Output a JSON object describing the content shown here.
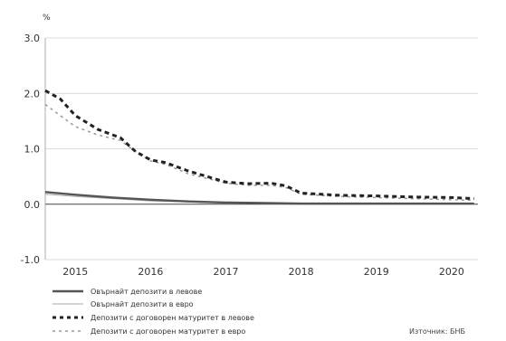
{
  "chart_data": {
    "type": "line",
    "unit_label": "%",
    "source": "Източник: БНБ",
    "ylim": [
      -1.0,
      3.0
    ],
    "y_ticks": [
      "3.0",
      "2.0",
      "1.0",
      "0.0",
      "-1.0"
    ],
    "y_tick_values": [
      3.0,
      2.0,
      1.0,
      0.0,
      -1.0
    ],
    "x_ticks": [
      "2015",
      "2016",
      "2017",
      "2018",
      "2019",
      "2020"
    ],
    "x_tick_values": [
      2015,
      2016,
      2017,
      2018,
      2019,
      2020
    ],
    "xlim": [
      2014.6,
      2020.35
    ],
    "grid": true,
    "legend_position": "bottom",
    "series": [
      {
        "name": "Овърнайт депозити в левове",
        "color": "#555555",
        "style": "solid-thick",
        "x": [
          2014.6,
          2015.0,
          2015.5,
          2016.0,
          2016.5,
          2017.0,
          2017.5,
          2018.0,
          2018.5,
          2019.0,
          2019.5,
          2020.0,
          2020.3
        ],
        "y": [
          0.22,
          0.17,
          0.12,
          0.08,
          0.05,
          0.03,
          0.02,
          0.01,
          0.01,
          0.01,
          0.01,
          0.01,
          0.01
        ]
      },
      {
        "name": "Овърнайт депозити в евро",
        "color": "#aaaaaa",
        "style": "solid-thin",
        "x": [
          2014.6,
          2015.0,
          2015.5,
          2016.0,
          2016.5,
          2017.0,
          2017.5,
          2018.0,
          2018.5,
          2019.0,
          2019.5,
          2020.0,
          2020.3
        ],
        "y": [
          0.18,
          0.14,
          0.1,
          0.06,
          0.04,
          0.02,
          0.01,
          0.01,
          0.01,
          0.0,
          0.0,
          0.0,
          0.0
        ]
      },
      {
        "name": "Депозити с договорен матуритет в левове",
        "color": "#222222",
        "style": "dashed-thick",
        "x": [
          2014.6,
          2014.8,
          2015.0,
          2015.3,
          2015.6,
          2015.8,
          2016.0,
          2016.2,
          2016.5,
          2017.0,
          2017.3,
          2017.6,
          2017.8,
          2018.0,
          2018.5,
          2019.0,
          2019.5,
          2020.0,
          2020.3
        ],
        "y": [
          2.05,
          1.9,
          1.6,
          1.35,
          1.2,
          0.95,
          0.8,
          0.75,
          0.6,
          0.4,
          0.37,
          0.38,
          0.33,
          0.2,
          0.16,
          0.15,
          0.13,
          0.12,
          0.1
        ]
      },
      {
        "name": "Депозити с договорен матуритет в евро",
        "color": "#999999",
        "style": "dashed-thin",
        "x": [
          2014.6,
          2014.8,
          2015.0,
          2015.3,
          2015.6,
          2015.8,
          2016.0,
          2016.2,
          2016.5,
          2017.0,
          2017.3,
          2017.6,
          2017.8,
          2018.0,
          2018.5,
          2019.0,
          2019.5,
          2020.0,
          2020.3
        ],
        "y": [
          1.8,
          1.6,
          1.4,
          1.25,
          1.15,
          0.95,
          0.78,
          0.72,
          0.55,
          0.38,
          0.34,
          0.34,
          0.3,
          0.18,
          0.14,
          0.12,
          0.1,
          0.08,
          0.07
        ]
      }
    ]
  }
}
